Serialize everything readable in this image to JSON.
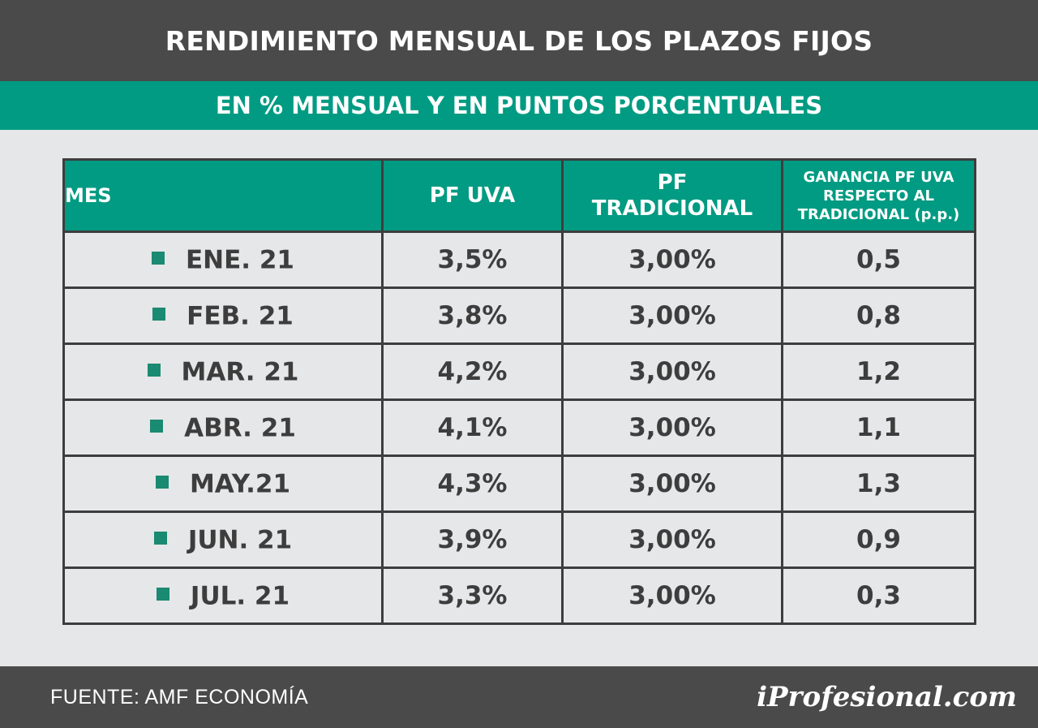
{
  "header": {
    "title": "RENDIMIENTO MENSUAL DE LOS PLAZOS FIJOS",
    "subtitle": "EN % MENSUAL Y EN PUNTOS PORCENTUALES"
  },
  "colors": {
    "accent_green": "#009b82",
    "bullet_green": "#1a8a72",
    "dark_bar": "#4a4a4a",
    "background": "#e6e7e8",
    "text_dark": "#3d3d3d"
  },
  "chart_data": {
    "type": "table",
    "columns": {
      "month": "MES",
      "pf_uva": "PF UVA",
      "pf_trad_line1": "PF",
      "pf_trad_line2": "TRADICIONAL",
      "gain_line1": "GANANCIA PF UVA",
      "gain_line2": "RESPECTO AL",
      "gain_line3": "TRADICIONAL (p.p.)"
    },
    "rows": [
      {
        "month": "ENE. 21",
        "pf_uva": "3,5%",
        "pf_tradicional": "3,00%",
        "ganancia": "0,5"
      },
      {
        "month": "FEB. 21",
        "pf_uva": "3,8%",
        "pf_tradicional": "3,00%",
        "ganancia": "0,8"
      },
      {
        "month": "MAR. 21",
        "pf_uva": "4,2%",
        "pf_tradicional": "3,00%",
        "ganancia": "1,2"
      },
      {
        "month": "ABR. 21",
        "pf_uva": "4,1%",
        "pf_tradicional": "3,00%",
        "ganancia": "1,1"
      },
      {
        "month": "MAY.21",
        "pf_uva": "4,3%",
        "pf_tradicional": "3,00%",
        "ganancia": "1,3"
      },
      {
        "month": "JUN. 21",
        "pf_uva": "3,9%",
        "pf_tradicional": "3,00%",
        "ganancia": "0,9"
      },
      {
        "month": "JUL. 21",
        "pf_uva": "3,3%",
        "pf_tradicional": "3,00%",
        "ganancia": "0,3"
      }
    ]
  },
  "footer": {
    "source": "FUENTE: AMF ECONOMÍA",
    "brand": "iProfesional.com"
  }
}
